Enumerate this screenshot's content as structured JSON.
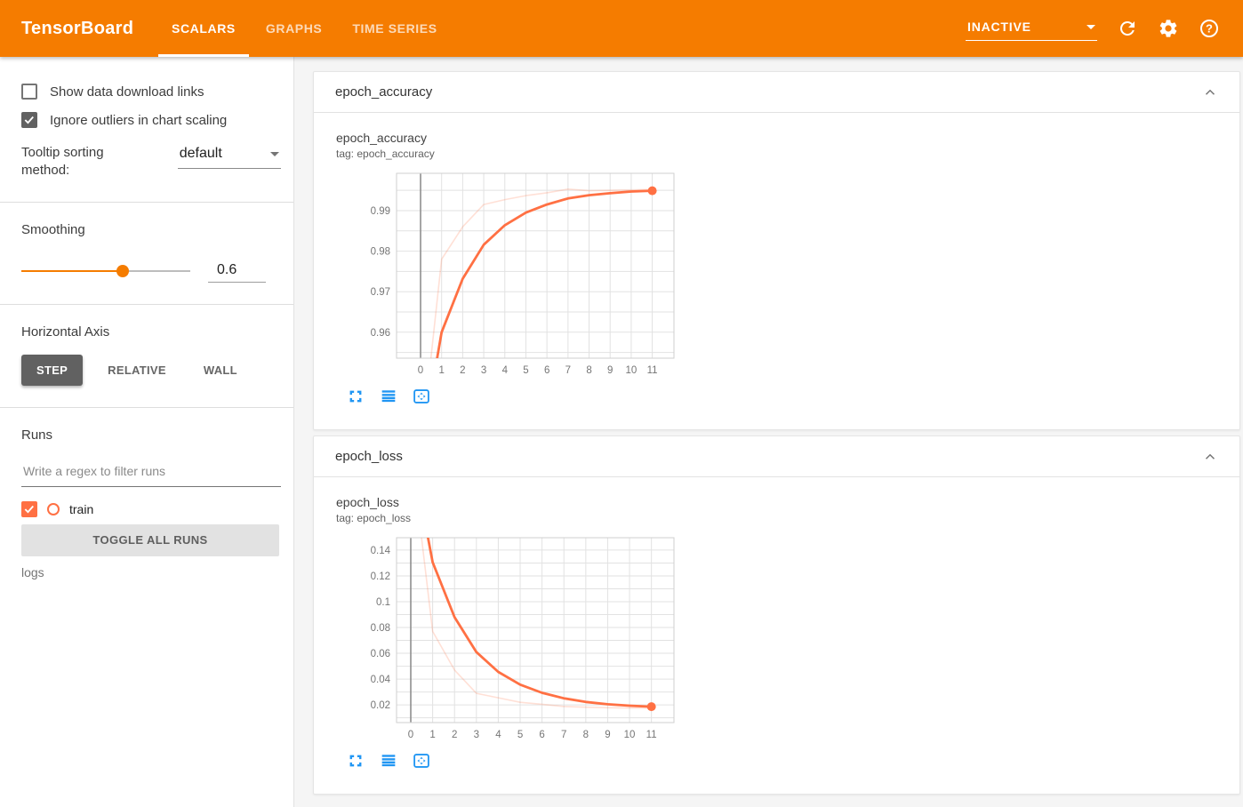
{
  "header": {
    "title": "TensorBoard",
    "tabs": [
      {
        "label": "SCALARS",
        "active": true
      },
      {
        "label": "GRAPHS",
        "active": false
      },
      {
        "label": "TIME SERIES",
        "active": false
      }
    ],
    "status_dropdown": "INACTIVE",
    "icons": [
      "refresh-icon",
      "settings-icon",
      "help-icon"
    ]
  },
  "sidebar": {
    "checkboxes": [
      {
        "label": "Show data download links",
        "checked": false
      },
      {
        "label": "Ignore outliers in chart scaling",
        "checked": true
      }
    ],
    "tooltip_sorting": {
      "label": "Tooltip sorting method:",
      "value": "default"
    },
    "smoothing": {
      "label": "Smoothing",
      "value": "0.6",
      "percent": 60
    },
    "horizontal_axis": {
      "label": "Horizontal Axis",
      "options": [
        "STEP",
        "RELATIVE",
        "WALL"
      ],
      "selected": "STEP"
    },
    "runs": {
      "label": "Runs",
      "filter_placeholder": "Write a regex to filter runs",
      "items": [
        {
          "name": "train",
          "checked": true,
          "color": "#ff7043"
        }
      ],
      "toggle_button": "TOGGLE ALL RUNS",
      "footer": "logs"
    }
  },
  "cards": [
    {
      "title": "epoch_accuracy"
    },
    {
      "title": "epoch_loss"
    }
  ],
  "colors": {
    "toolbar": "#f57c00",
    "run_train": "#ff7043",
    "chart_icon_blue": "#2196f3",
    "grid": "#e2e2e2",
    "plot_border": "#cfcfcf",
    "zero_line": "#8f8f8f",
    "tick_text": "#757575"
  },
  "chart_data": [
    {
      "type": "line",
      "title": "epoch_accuracy",
      "tag_label": "tag: epoch_accuracy",
      "x_domain": [
        -1.14,
        12.03
      ],
      "y_domain": [
        0.9536,
        0.9992
      ],
      "x_ticks": [
        0,
        1,
        2,
        3,
        4,
        5,
        6,
        7,
        8,
        9,
        10,
        11
      ],
      "y_grid": [
        0.955,
        0.96,
        0.965,
        0.97,
        0.975,
        0.98,
        0.985,
        0.99,
        0.995
      ],
      "y_ticks": [
        {
          "v": 0.96,
          "label": "0.96"
        },
        {
          "v": 0.97,
          "label": "0.97"
        },
        {
          "v": 0.98,
          "label": "0.98"
        },
        {
          "v": 0.99,
          "label": "0.99"
        }
      ],
      "x": [
        0,
        1,
        2,
        3,
        4,
        5,
        6,
        7,
        8,
        9,
        10,
        11
      ],
      "series": [
        {
          "name": "train (raw)",
          "color": "#ff7043",
          "opacity": 0.22,
          "width": 1.6,
          "values": [
            0.93,
            0.978,
            0.986,
            0.9915,
            0.9927,
            0.9937,
            0.9944,
            0.9953,
            0.9949,
            0.995,
            0.9951,
            0.9952
          ]
        },
        {
          "name": "train (smoothed)",
          "color": "#ff7043",
          "opacity": 1,
          "width": 2.8,
          "end_marker": true,
          "values": [
            0.93,
            0.96,
            0.9732,
            0.9816,
            0.9864,
            0.9895,
            0.9915,
            0.993,
            0.9938,
            0.9943,
            0.9947,
            0.9949
          ]
        }
      ]
    },
    {
      "type": "line",
      "title": "epoch_loss",
      "tag_label": "tag: epoch_loss",
      "x_domain": [
        -0.65,
        12.03
      ],
      "y_domain": [
        0.0063,
        0.1496
      ],
      "x_ticks": [
        0,
        1,
        2,
        3,
        4,
        5,
        6,
        7,
        8,
        9,
        10,
        11
      ],
      "y_grid": [
        0.01,
        0.02,
        0.03,
        0.04,
        0.05,
        0.06,
        0.07,
        0.08,
        0.09,
        0.1,
        0.11,
        0.12,
        0.13,
        0.14
      ],
      "y_ticks": [
        {
          "v": 0.02,
          "label": "0.02"
        },
        {
          "v": 0.04,
          "label": "0.04"
        },
        {
          "v": 0.06,
          "label": "0.06"
        },
        {
          "v": 0.08,
          "label": "0.08"
        },
        {
          "v": 0.1,
          "label": "0.1"
        },
        {
          "v": 0.12,
          "label": "0.12"
        },
        {
          "v": 0.14,
          "label": "0.14"
        }
      ],
      "x": [
        0,
        1,
        2,
        3,
        4,
        5,
        6,
        7,
        8,
        9,
        10,
        11
      ],
      "series": [
        {
          "name": "train (raw)",
          "color": "#ff7043",
          "opacity": 0.22,
          "width": 1.6,
          "values": [
            0.22,
            0.077,
            0.047,
            0.029,
            0.0255,
            0.022,
            0.0205,
            0.0188,
            0.0182,
            0.0178,
            0.0176,
            0.0175
          ]
        },
        {
          "name": "train (smoothed)",
          "color": "#ff7043",
          "opacity": 1,
          "width": 2.8,
          "end_marker": true,
          "values": [
            0.22,
            0.1306,
            0.088,
            0.0609,
            0.0456,
            0.0357,
            0.0294,
            0.0251,
            0.0223,
            0.0205,
            0.0194,
            0.0186
          ]
        }
      ]
    }
  ]
}
